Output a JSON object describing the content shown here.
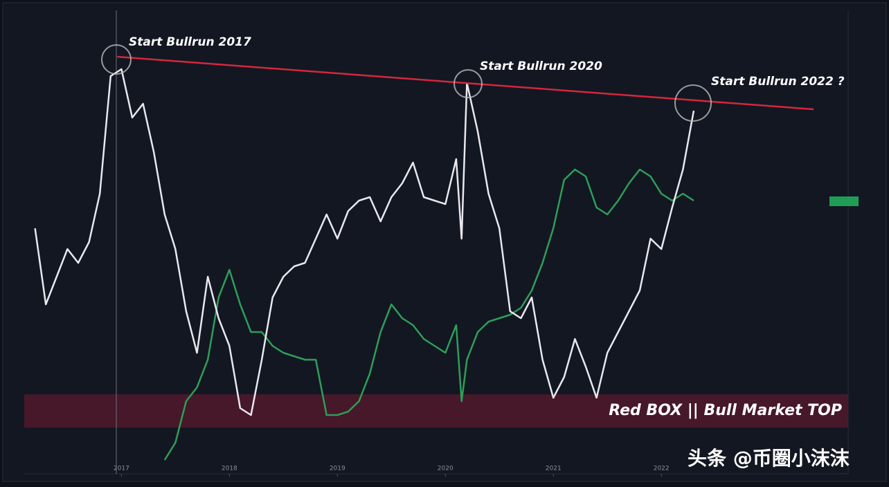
{
  "chart_data": {
    "type": "line",
    "annotations": [
      "Start Bullrun 2017",
      "Start Bullrun 2020",
      "Start Bullrun 2022 ?",
      "Red BOX || Bull Market TOP"
    ],
    "watermark": "头条 @币圈小沫沫",
    "x": [
      2016.2,
      2016.3,
      2016.4,
      2016.5,
      2016.6,
      2016.7,
      2016.8,
      2016.9,
      2017.0,
      2017.1,
      2017.2,
      2017.3,
      2017.4,
      2017.5,
      2017.6,
      2017.7,
      2017.8,
      2017.9,
      2018.0,
      2018.1,
      2018.2,
      2018.3,
      2018.4,
      2018.5,
      2018.6,
      2018.7,
      2018.8,
      2018.9,
      2019.0,
      2019.1,
      2019.2,
      2019.3,
      2019.4,
      2019.5,
      2019.6,
      2019.7,
      2019.8,
      2019.9,
      2020.0,
      2020.1,
      2020.15,
      2020.2,
      2020.3,
      2020.4,
      2020.5,
      2020.6,
      2020.7,
      2020.8,
      2020.9,
      2021.0,
      2021.1,
      2021.2,
      2021.3,
      2021.4,
      2021.5,
      2021.6,
      2021.7,
      2021.8,
      2021.9,
      2022.0,
      2022.1,
      2022.2,
      2022.3
    ],
    "series": [
      {
        "color": "#e8e8ee",
        "values": [
          355,
          245,
          285,
          325,
          305,
          335,
          405,
          575,
          585,
          515,
          535,
          465,
          375,
          325,
          235,
          175,
          285,
          225,
          185,
          95,
          85,
          165,
          255,
          285,
          300,
          305,
          340,
          375,
          340,
          380,
          395,
          400,
          365,
          400,
          420,
          450,
          400,
          395,
          390,
          455,
          340,
          565,
          495,
          405,
          355,
          235,
          225,
          255,
          165,
          110,
          140,
          195,
          155,
          110,
          175,
          205,
          235,
          265,
          340,
          325,
          385,
          440,
          525
        ]
      },
      {
        "color": "#2e9e58",
        "values": [
          null,
          null,
          null,
          null,
          null,
          null,
          null,
          null,
          null,
          null,
          null,
          null,
          20,
          45,
          105,
          125,
          165,
          255,
          295,
          245,
          205,
          205,
          185,
          175,
          170,
          165,
          165,
          85,
          85,
          90,
          105,
          145,
          205,
          245,
          225,
          215,
          195,
          185,
          175,
          215,
          105,
          165,
          205,
          220,
          225,
          230,
          240,
          265,
          305,
          355,
          425,
          440,
          430,
          385,
          375,
          395,
          420,
          440,
          430,
          405,
          395,
          405,
          395
        ]
      }
    ],
    "trend_line": {
      "color": "#d7263d",
      "x": [
        2016.96,
        2023.41
      ],
      "values": [
        603,
        527
      ]
    },
    "xlim": [
      2016.1,
      2023.73
    ],
    "ylim": [
      0,
      670
    ],
    "xticks": [
      2017,
      2018,
      2019,
      2020,
      2021,
      2022
    ]
  }
}
